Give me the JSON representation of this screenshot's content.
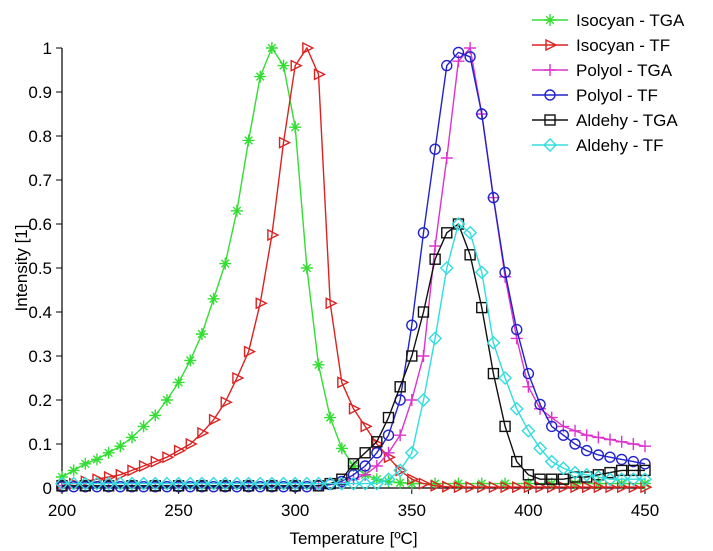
{
  "chart_data": {
    "type": "line",
    "xlabel": "Temperature [ºC]",
    "ylabel": "Intensity [1]",
    "xlim": [
      200,
      450
    ],
    "ylim": [
      0,
      1
    ],
    "xticks": [
      200,
      250,
      300,
      350,
      400,
      450
    ],
    "yticks": [
      0,
      0.1,
      0.2,
      0.3,
      0.4,
      0.5,
      0.6,
      0.7,
      0.8,
      0.9,
      1
    ],
    "grid": false,
    "legend": "top-right",
    "series": [
      {
        "name": "Isocyan - TGA",
        "color": "#33dd33",
        "marker": "asterisk",
        "x": [
          200,
          205,
          210,
          215,
          220,
          225,
          230,
          235,
          240,
          245,
          250,
          255,
          260,
          265,
          270,
          275,
          280,
          285,
          290,
          295,
          300,
          305,
          310,
          315,
          320,
          325,
          330,
          335,
          340,
          345,
          350,
          360,
          370,
          380,
          390,
          400,
          410,
          420,
          430,
          440,
          450
        ],
        "values": [
          0.025,
          0.04,
          0.055,
          0.065,
          0.08,
          0.095,
          0.115,
          0.14,
          0.165,
          0.2,
          0.24,
          0.29,
          0.35,
          0.43,
          0.51,
          0.63,
          0.79,
          0.935,
          1.0,
          0.96,
          0.82,
          0.5,
          0.28,
          0.16,
          0.09,
          0.05,
          0.03,
          0.02,
          0.015,
          0.012,
          0.01,
          0.01,
          0.01,
          0.01,
          0.01,
          0.01,
          0.01,
          0.01,
          0.01,
          0.01,
          0.01
        ]
      },
      {
        "name": "Isocyan - TF",
        "color": "#dd2222",
        "marker": "triangle-right",
        "x": [
          200,
          205,
          210,
          215,
          220,
          225,
          230,
          235,
          240,
          245,
          250,
          255,
          260,
          265,
          270,
          275,
          280,
          285,
          290,
          295,
          300,
          305,
          310,
          315,
          320,
          325,
          330,
          335,
          340,
          345,
          350,
          355,
          360,
          365,
          370,
          375,
          380,
          385,
          390,
          395,
          400,
          405,
          410,
          415,
          420,
          425,
          430,
          435,
          440,
          445,
          450
        ],
        "values": [
          0.005,
          0.01,
          0.015,
          0.02,
          0.025,
          0.03,
          0.04,
          0.05,
          0.06,
          0.07,
          0.085,
          0.1,
          0.125,
          0.155,
          0.195,
          0.25,
          0.31,
          0.42,
          0.575,
          0.785,
          0.96,
          1.0,
          0.94,
          0.42,
          0.24,
          0.18,
          0.14,
          0.1,
          0.07,
          0.04,
          0.02,
          0.01,
          0.005,
          0.003,
          0.002,
          0.002,
          0.002,
          0.002,
          0.002,
          0.002,
          0.002,
          0.002,
          0.002,
          0.002,
          0.002,
          0.002,
          0.002,
          0.002,
          0.002,
          0.002,
          0.002
        ]
      },
      {
        "name": "Polyol - TGA",
        "color": "#dd33cc",
        "marker": "plus",
        "x": [
          200,
          210,
          220,
          230,
          240,
          250,
          260,
          270,
          280,
          290,
          300,
          310,
          320,
          325,
          330,
          335,
          340,
          345,
          350,
          355,
          360,
          365,
          370,
          375,
          380,
          385,
          390,
          395,
          400,
          405,
          410,
          415,
          420,
          425,
          430,
          435,
          440,
          445,
          450
        ],
        "values": [
          0.005,
          0.005,
          0.005,
          0.005,
          0.005,
          0.005,
          0.005,
          0.005,
          0.005,
          0.005,
          0.005,
          0.005,
          0.01,
          0.02,
          0.03,
          0.05,
          0.08,
          0.12,
          0.2,
          0.3,
          0.55,
          0.75,
          0.97,
          1.0,
          0.85,
          0.66,
          0.48,
          0.34,
          0.23,
          0.18,
          0.16,
          0.14,
          0.13,
          0.12,
          0.115,
          0.11,
          0.105,
          0.1,
          0.095
        ]
      },
      {
        "name": "Polyol - TF",
        "color": "#2222cc",
        "marker": "circle",
        "x": [
          200,
          205,
          210,
          215,
          220,
          225,
          230,
          235,
          240,
          245,
          250,
          255,
          260,
          265,
          270,
          275,
          280,
          285,
          290,
          295,
          300,
          305,
          310,
          315,
          320,
          325,
          330,
          335,
          340,
          345,
          350,
          355,
          360,
          365,
          370,
          375,
          380,
          385,
          390,
          395,
          400,
          405,
          410,
          415,
          420,
          425,
          430,
          435,
          440,
          445,
          450
        ],
        "values": [
          0.003,
          0.003,
          0.003,
          0.003,
          0.003,
          0.003,
          0.003,
          0.003,
          0.003,
          0.003,
          0.003,
          0.003,
          0.003,
          0.003,
          0.003,
          0.003,
          0.003,
          0.003,
          0.003,
          0.003,
          0.003,
          0.003,
          0.005,
          0.008,
          0.015,
          0.03,
          0.05,
          0.08,
          0.12,
          0.2,
          0.37,
          0.58,
          0.77,
          0.96,
          0.99,
          0.98,
          0.85,
          0.66,
          0.49,
          0.36,
          0.26,
          0.19,
          0.14,
          0.12,
          0.1,
          0.085,
          0.075,
          0.07,
          0.065,
          0.06,
          0.055
        ]
      },
      {
        "name": "Aldehy - TGA",
        "color": "#111111",
        "marker": "square",
        "x": [
          200,
          210,
          220,
          230,
          240,
          250,
          260,
          270,
          280,
          290,
          300,
          310,
          315,
          320,
          325,
          330,
          335,
          340,
          345,
          350,
          355,
          360,
          365,
          370,
          375,
          380,
          385,
          390,
          395,
          400,
          405,
          410,
          415,
          420,
          425,
          430,
          435,
          440,
          445,
          450
        ],
        "values": [
          0.005,
          0.005,
          0.005,
          0.005,
          0.005,
          0.005,
          0.005,
          0.005,
          0.005,
          0.005,
          0.005,
          0.005,
          0.01,
          0.02,
          0.055,
          0.08,
          0.105,
          0.16,
          0.23,
          0.3,
          0.4,
          0.52,
          0.58,
          0.6,
          0.53,
          0.41,
          0.26,
          0.14,
          0.06,
          0.03,
          0.02,
          0.02,
          0.02,
          0.025,
          0.025,
          0.03,
          0.035,
          0.04,
          0.04,
          0.04
        ]
      },
      {
        "name": "Aldehy - TF",
        "color": "#33dddd",
        "marker": "diamond",
        "x": [
          200,
          205,
          210,
          215,
          220,
          225,
          230,
          235,
          240,
          245,
          250,
          255,
          260,
          265,
          270,
          275,
          280,
          285,
          290,
          295,
          300,
          305,
          310,
          315,
          320,
          325,
          330,
          335,
          340,
          345,
          350,
          355,
          360,
          365,
          370,
          375,
          380,
          385,
          390,
          395,
          400,
          405,
          410,
          415,
          420,
          425,
          430,
          435,
          440,
          445,
          450
        ],
        "values": [
          0.01,
          0.01,
          0.01,
          0.01,
          0.01,
          0.01,
          0.01,
          0.01,
          0.01,
          0.01,
          0.01,
          0.01,
          0.01,
          0.01,
          0.01,
          0.01,
          0.01,
          0.01,
          0.01,
          0.01,
          0.01,
          0.01,
          0.01,
          0.01,
          0.01,
          0.01,
          0.01,
          0.01,
          0.02,
          0.04,
          0.08,
          0.2,
          0.34,
          0.5,
          0.6,
          0.58,
          0.49,
          0.33,
          0.25,
          0.18,
          0.13,
          0.09,
          0.06,
          0.045,
          0.035,
          0.03,
          0.025,
          0.02,
          0.02,
          0.02,
          0.02
        ]
      }
    ]
  }
}
